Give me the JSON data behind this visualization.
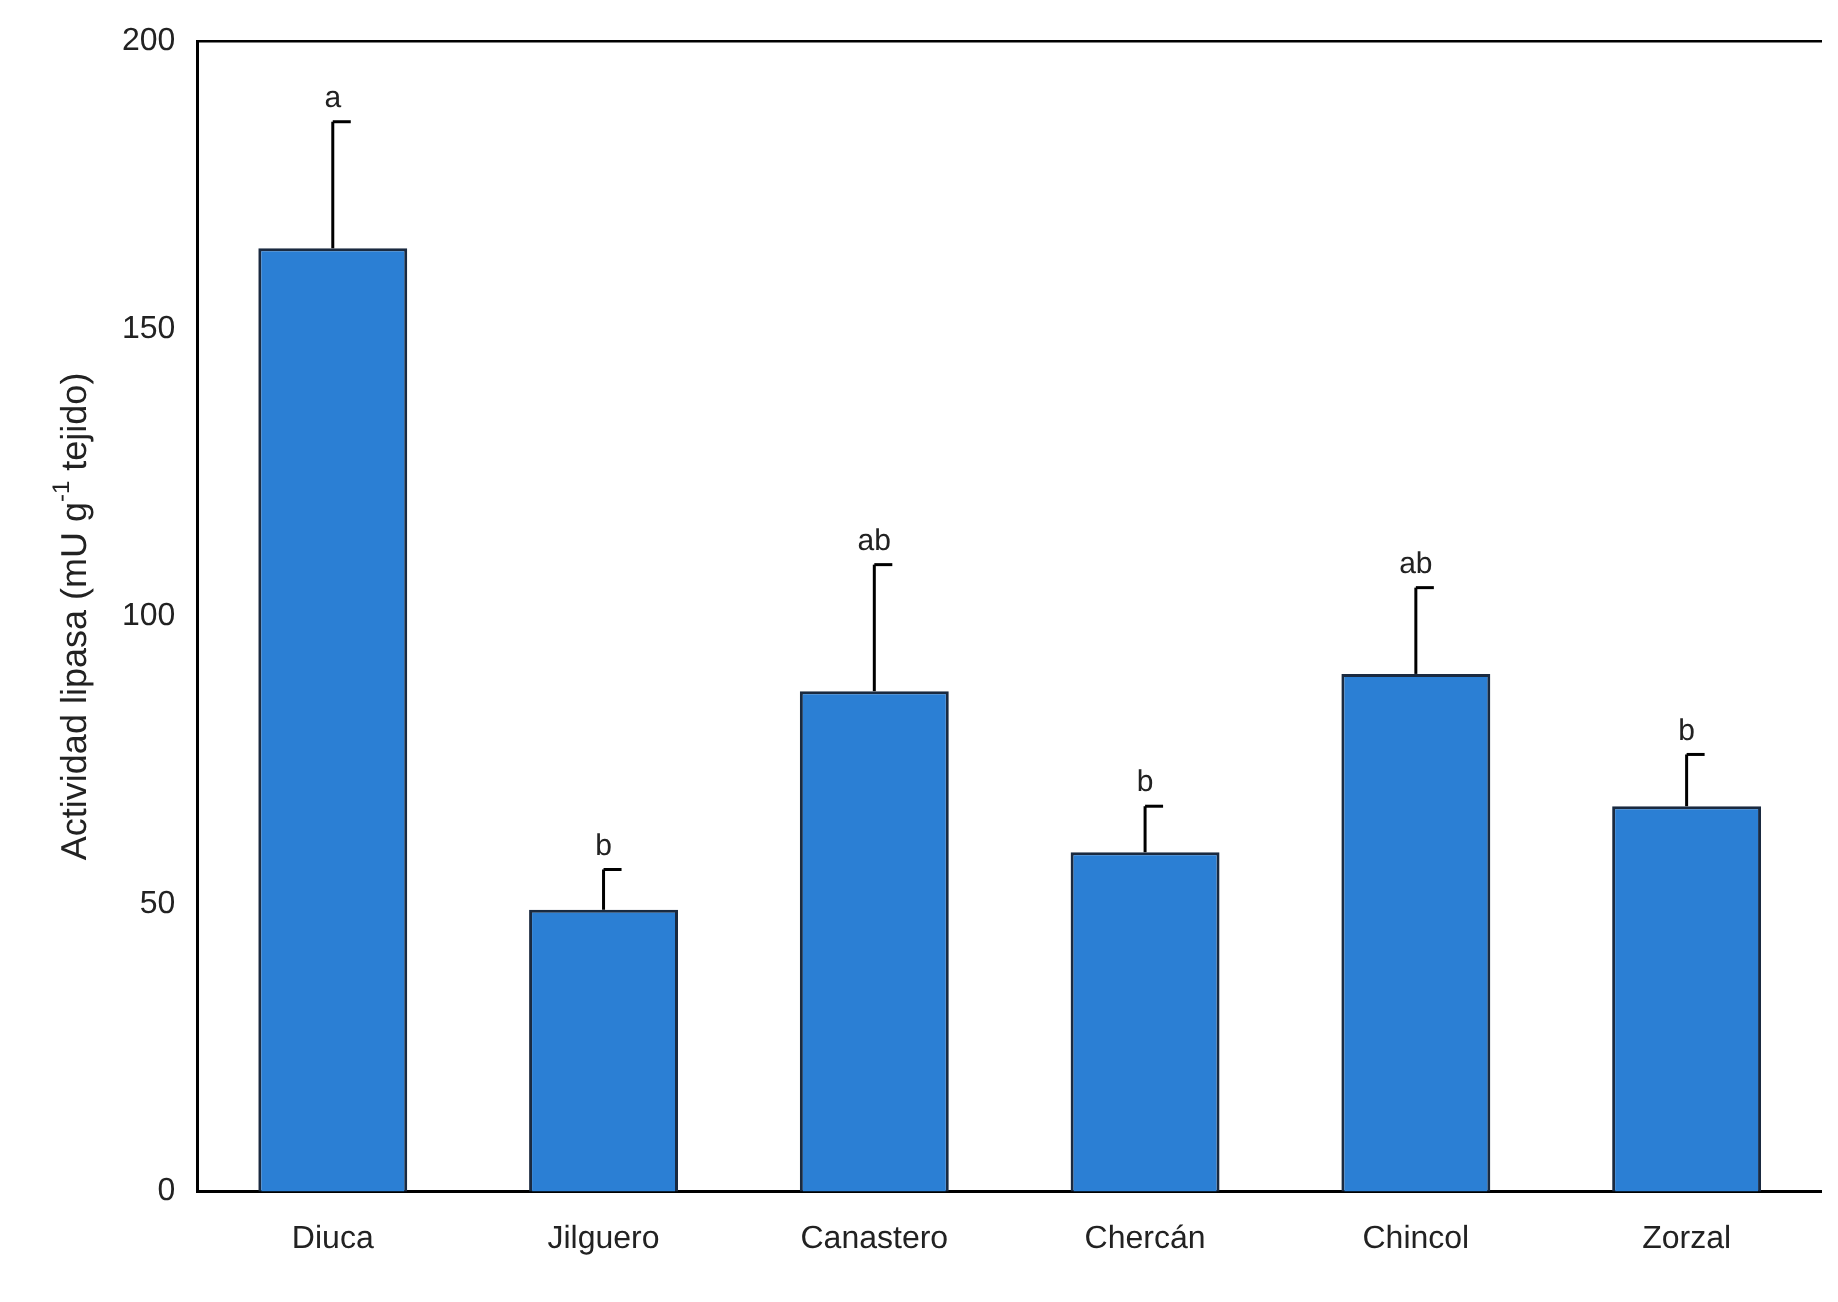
{
  "chart_data": {
    "type": "bar",
    "ylabel": "Actividad lipasa (mU g$^{-1}$ tejido)",
    "categories": [
      "Diuca",
      "Jilguero",
      "Canastero",
      "Chercán",
      "Chincol",
      "Zorzal"
    ],
    "values": [
      164,
      49,
      87,
      59,
      90,
      67
    ],
    "errors": [
      [
        164,
        186
      ],
      [
        49,
        56
      ],
      [
        87,
        109
      ],
      [
        59,
        67
      ],
      [
        90,
        105
      ],
      [
        67,
        76
      ]
    ],
    "color": "#2b7fd4",
    "ylim": [
      0,
      200
    ],
    "yticks": [
      0,
      50,
      100,
      150,
      200
    ],
    "grid": false,
    "legend": false,
    "annotations": [
      {
        "text": "a",
        "x": "Diuca",
        "y": 186
      },
      {
        "text": "b",
        "x": "Jilguero",
        "y": 56
      },
      {
        "text": "ab",
        "x": "Canastero",
        "y": 109
      },
      {
        "text": "b",
        "x": "Chercán",
        "y": 67
      },
      {
        "text": "ab",
        "x": "Chincol",
        "y": 105
      },
      {
        "text": "b",
        "x": "Zorzal",
        "y": 76
      }
    ]
  }
}
